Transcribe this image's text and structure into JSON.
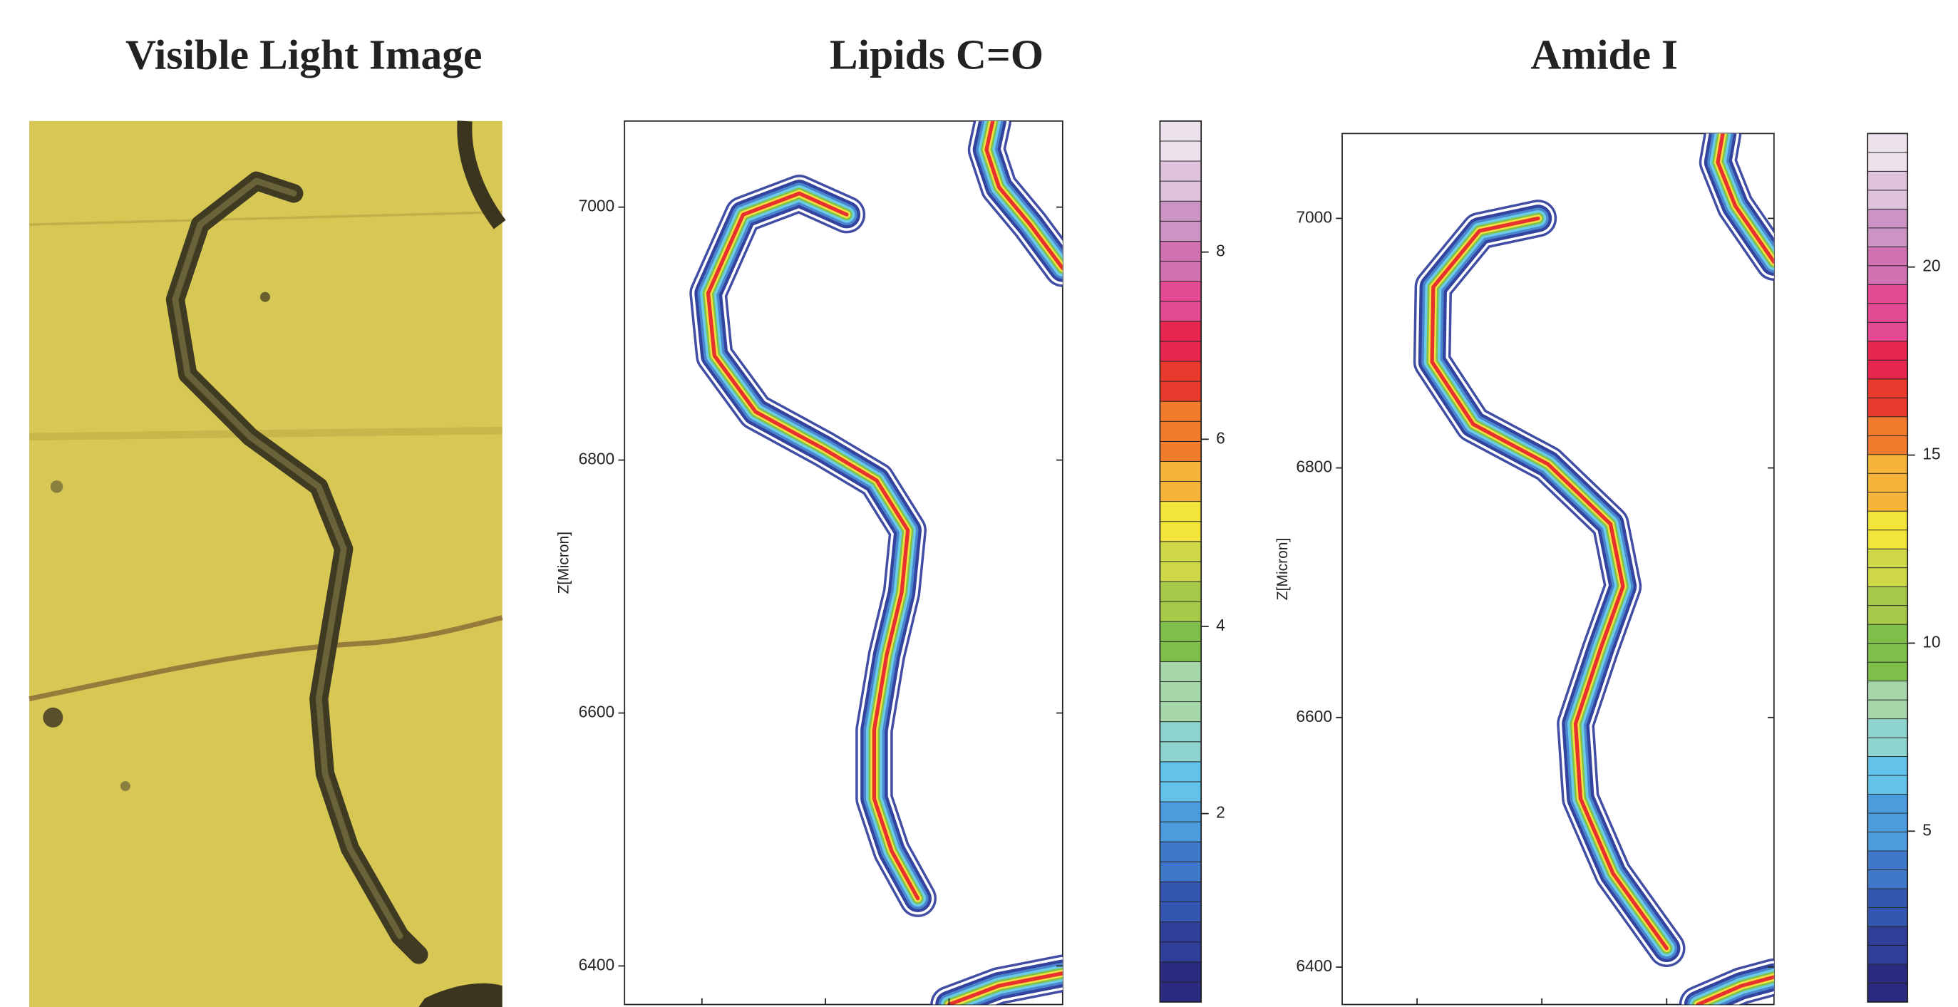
{
  "panels": [
    {
      "title": "Visible Light Image"
    },
    {
      "title": "Lipids C=O",
      "y_label": "Z[Micron]",
      "yticks": [
        7000,
        6800,
        6600,
        6400
      ],
      "colorbar_ticks": [
        8,
        6,
        4,
        2
      ]
    },
    {
      "title": "Amide I",
      "y_label": "Z[Micron]",
      "yticks": [
        7000,
        6800,
        6600,
        6400
      ],
      "colorbar_ticks": [
        20,
        15,
        10,
        5
      ]
    }
  ]
}
